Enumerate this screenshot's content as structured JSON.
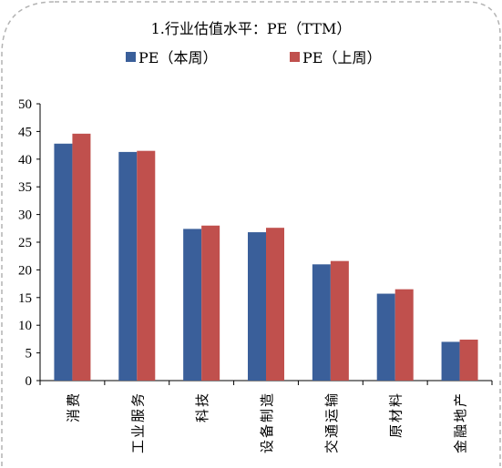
{
  "chart_data": {
    "type": "bar",
    "title": "1.行业估值水平：PE（TTM）",
    "categories": [
      "消费",
      "工业服务",
      "科技",
      "设备制造",
      "交通运输",
      "原材料",
      "金融地产"
    ],
    "series": [
      {
        "name": "PE（本周）",
        "color": "#3a5f9a",
        "values": [
          42.8,
          41.3,
          27.4,
          26.8,
          21.0,
          15.7,
          7.0
        ]
      },
      {
        "name": "PE（上周）",
        "color": "#c0504d",
        "values": [
          44.6,
          41.5,
          28.0,
          27.6,
          21.6,
          16.5,
          7.4
        ]
      }
    ],
    "ylim": [
      0,
      50
    ],
    "yticks": [
      "0",
      "5",
      "10",
      "15",
      "20",
      "25",
      "30",
      "35",
      "40",
      "45",
      "50"
    ],
    "xlabel": "",
    "ylabel": "",
    "grid": false,
    "legend_position": "top"
  }
}
